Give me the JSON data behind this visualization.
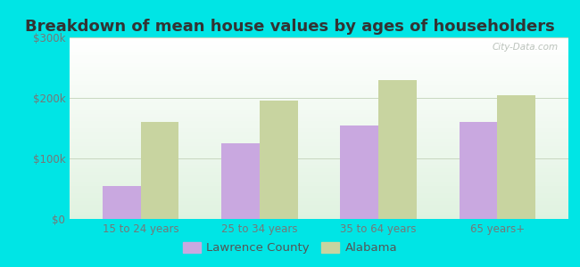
{
  "title": "Breakdown of mean house values by ages of householders",
  "categories": [
    "15 to 24 years",
    "25 to 34 years",
    "35 to 64 years",
    "65 years+"
  ],
  "series": {
    "Lawrence County": [
      55000,
      125000,
      155000,
      160000
    ],
    "Alabama": [
      160000,
      195000,
      230000,
      205000
    ]
  },
  "bar_colors": {
    "Lawrence County": "#c9a8e0",
    "Alabama": "#c8d4a0"
  },
  "ylim": [
    0,
    300000
  ],
  "yticks": [
    0,
    100000,
    200000,
    300000
  ],
  "ytick_labels": [
    "$0",
    "$100k",
    "$200k",
    "$300k"
  ],
  "background_color": "#00e5e5",
  "title_color": "#333333",
  "title_fontsize": 13,
  "tick_fontsize": 8.5,
  "legend_fontsize": 9.5,
  "bar_width": 0.32,
  "grid_color": "#c8d8c0",
  "watermark": "City-Data.com",
  "watermark_color": "#b0b8b0"
}
